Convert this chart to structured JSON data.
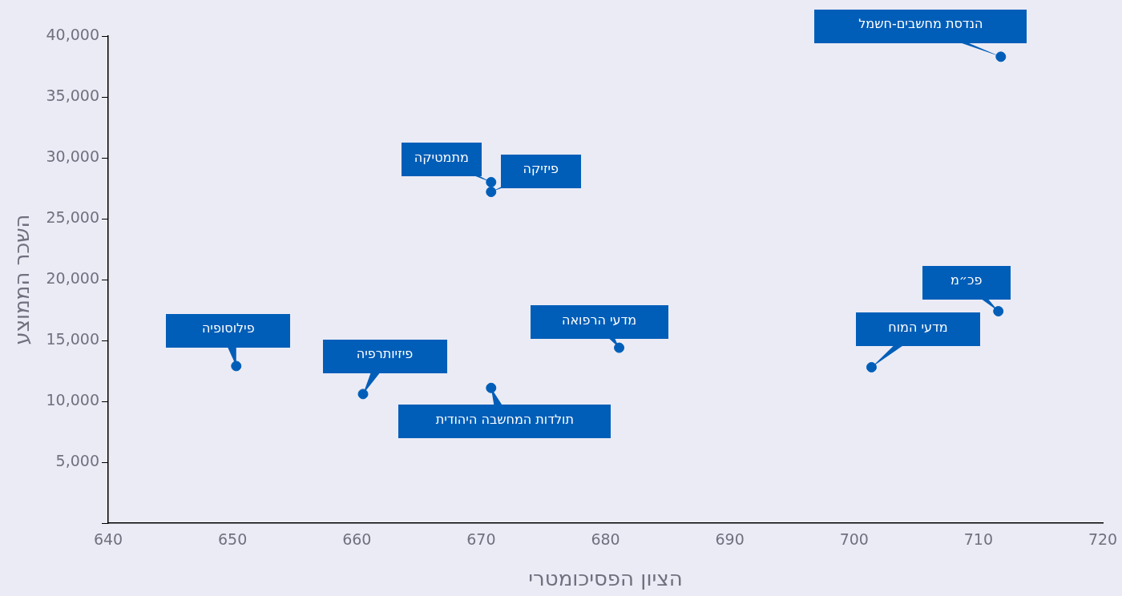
{
  "chart_data": {
    "type": "scatter",
    "xlabel": "הציון הפסיכומטרי",
    "ylabel": "השכר הממוצע",
    "x": [
      711.8,
      670.8,
      670.8,
      711.6,
      701.4,
      681.1,
      650.3,
      660.5,
      670.8
    ],
    "series": [
      {
        "color": "#005eb8",
        "values": [
          38300,
          28000,
          27200,
          17400,
          12800,
          14400,
          12900,
          10600,
          11100
        ]
      }
    ],
    "xlim": [
      640,
      720
    ],
    "xticks": [
      640,
      650,
      660,
      670,
      680,
      690,
      700,
      710,
      720
    ],
    "ylim": [
      0,
      40000
    ],
    "yticks": [
      {
        "value": 0,
        "label": null
      },
      {
        "value": 5000,
        "label": "5,000"
      },
      {
        "value": 10000,
        "label": "10,000"
      },
      {
        "value": 15000,
        "label": "15,000"
      },
      {
        "value": 20000,
        "label": "20,000"
      },
      {
        "value": 25000,
        "label": "25,000"
      },
      {
        "value": 30000,
        "label": "30,000"
      },
      {
        "value": 35000,
        "label": "35,000"
      },
      {
        "value": 40000,
        "label": "40,000"
      }
    ],
    "grid": false,
    "legend": false,
    "marker": "circle",
    "annotations": [
      {
        "text": "הנדסת מחשבים-חשמל",
        "x": 711.8,
        "y": 38300
      },
      {
        "text": "מתמטיקה",
        "x": 670.8,
        "y": 28000
      },
      {
        "text": "פיזיקה",
        "x": 670.8,
        "y": 27200
      },
      {
        "text": "פכ״מ",
        "x": 711.6,
        "y": 17400
      },
      {
        "text": "מדעי המוח",
        "x": 701.4,
        "y": 12800
      },
      {
        "text": "מדעי הרפואה",
        "x": 681.1,
        "y": 14400
      },
      {
        "text": "פילוסופיה",
        "x": 650.3,
        "y": 12900
      },
      {
        "text": "פיזיותרפיה",
        "x": 660.5,
        "y": 10600
      },
      {
        "text": "תולדות המחשבה היהודית",
        "x": 670.8,
        "y": 11100
      }
    ]
  }
}
